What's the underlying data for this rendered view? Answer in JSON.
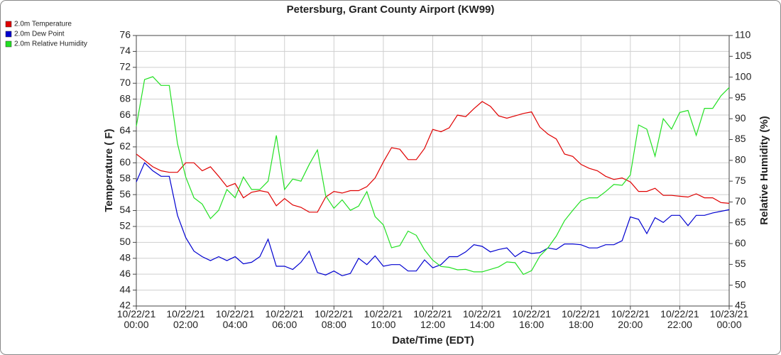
{
  "chart_data": {
    "type": "line",
    "title": "Petersburg, Grant County Airport (KW99)",
    "xlabel": "Date/Time (EDT)",
    "ylabel": "Temperature ( F)",
    "y2label": "Relative Humidity (%)",
    "grid": true,
    "legend": "top-left",
    "x": [
      "2021-10-22T00:00",
      "2021-10-22T00:20",
      "2021-10-22T00:40",
      "2021-10-22T01:00",
      "2021-10-22T01:20",
      "2021-10-22T01:40",
      "2021-10-22T02:00",
      "2021-10-22T02:20",
      "2021-10-22T02:40",
      "2021-10-22T03:00",
      "2021-10-22T03:20",
      "2021-10-22T03:40",
      "2021-10-22T04:00",
      "2021-10-22T04:20",
      "2021-10-22T04:40",
      "2021-10-22T05:00",
      "2021-10-22T05:20",
      "2021-10-22T05:40",
      "2021-10-22T06:00",
      "2021-10-22T06:20",
      "2021-10-22T06:40",
      "2021-10-22T07:00",
      "2021-10-22T07:20",
      "2021-10-22T07:40",
      "2021-10-22T08:00",
      "2021-10-22T08:20",
      "2021-10-22T08:40",
      "2021-10-22T09:00",
      "2021-10-22T09:20",
      "2021-10-22T09:40",
      "2021-10-22T10:00",
      "2021-10-22T10:20",
      "2021-10-22T10:40",
      "2021-10-22T11:00",
      "2021-10-22T11:20",
      "2021-10-22T11:40",
      "2021-10-22T12:00",
      "2021-10-22T12:20",
      "2021-10-22T12:40",
      "2021-10-22T13:00",
      "2021-10-22T13:20",
      "2021-10-22T13:40",
      "2021-10-22T14:00",
      "2021-10-22T14:20",
      "2021-10-22T14:40",
      "2021-10-22T15:00",
      "2021-10-22T15:20",
      "2021-10-22T15:40",
      "2021-10-22T16:00",
      "2021-10-22T16:20",
      "2021-10-22T16:40",
      "2021-10-22T17:00",
      "2021-10-22T17:20",
      "2021-10-22T17:40",
      "2021-10-22T18:00",
      "2021-10-22T18:20",
      "2021-10-22T18:40",
      "2021-10-22T19:00",
      "2021-10-22T19:20",
      "2021-10-22T19:40",
      "2021-10-22T20:00",
      "2021-10-22T20:20",
      "2021-10-22T20:40",
      "2021-10-22T21:00",
      "2021-10-22T21:20",
      "2021-10-22T21:40",
      "2021-10-22T22:00",
      "2021-10-22T22:20",
      "2021-10-22T22:40",
      "2021-10-22T23:00",
      "2021-10-22T23:20",
      "2021-10-22T23:40",
      "2021-10-23T00:00"
    ],
    "xlim": [
      "2021-10-22T00:00",
      "2021-10-23T00:00"
    ],
    "xticks": [
      {
        "value": "2021-10-22T00:00",
        "label": [
          "10/22/21",
          "00:00"
        ]
      },
      {
        "value": "2021-10-22T02:00",
        "label": [
          "10/22/21",
          "02:00"
        ]
      },
      {
        "value": "2021-10-22T04:00",
        "label": [
          "10/22/21",
          "04:00"
        ]
      },
      {
        "value": "2021-10-22T06:00",
        "label": [
          "10/22/21",
          "06:00"
        ]
      },
      {
        "value": "2021-10-22T08:00",
        "label": [
          "10/22/21",
          "08:00"
        ]
      },
      {
        "value": "2021-10-22T10:00",
        "label": [
          "10/22/21",
          "10:00"
        ]
      },
      {
        "value": "2021-10-22T12:00",
        "label": [
          "10/22/21",
          "12:00"
        ]
      },
      {
        "value": "2021-10-22T14:00",
        "label": [
          "10/22/21",
          "14:00"
        ]
      },
      {
        "value": "2021-10-22T16:00",
        "label": [
          "10/22/21",
          "16:00"
        ]
      },
      {
        "value": "2021-10-22T18:00",
        "label": [
          "10/22/21",
          "18:00"
        ]
      },
      {
        "value": "2021-10-22T20:00",
        "label": [
          "10/22/21",
          "20:00"
        ]
      },
      {
        "value": "2021-10-22T22:00",
        "label": [
          "10/22/21",
          "22:00"
        ]
      },
      {
        "value": "2021-10-23T00:00",
        "label": [
          "10/23/21",
          "00:00"
        ]
      }
    ],
    "ylim": [
      42,
      76
    ],
    "yticks": [
      42,
      44,
      46,
      48,
      50,
      52,
      54,
      56,
      58,
      60,
      62,
      64,
      66,
      68,
      70,
      72,
      74,
      76
    ],
    "y2lim": [
      45,
      110
    ],
    "y2ticks": [
      45,
      50,
      55,
      60,
      65,
      70,
      75,
      80,
      85,
      90,
      95,
      100,
      105,
      110
    ],
    "series": [
      {
        "name": "2.0m Temperature",
        "color": "#e00000",
        "values": [
          61.1,
          60.3,
          59.5,
          59.0,
          58.8,
          58.8,
          60.0,
          60.0,
          59.0,
          59.5,
          58.3,
          57.0,
          57.4,
          55.6,
          56.3,
          56.5,
          56.3,
          54.6,
          55.5,
          54.7,
          54.4,
          53.8,
          53.8,
          55.7,
          56.4,
          56.2,
          56.5,
          56.5,
          57.0,
          58.1,
          60.1,
          61.9,
          61.7,
          60.4,
          60.4,
          61.8,
          64.2,
          63.9,
          64.4,
          66.0,
          65.8,
          66.8,
          67.7,
          67.1,
          65.9,
          65.6,
          65.9,
          66.2,
          66.4,
          64.5,
          63.6,
          63.0,
          61.1,
          60.8,
          59.8,
          59.3,
          59.0,
          58.3,
          57.9,
          58.1,
          57.6,
          56.4,
          56.4,
          56.8,
          55.9,
          55.9,
          55.8,
          55.7,
          56.1,
          55.6,
          55.6,
          55.0,
          54.9
        ]
      },
      {
        "name": "2.0m Dew Point",
        "color": "#0000d0",
        "values": [
          57.6,
          60.0,
          59.0,
          58.3,
          58.3,
          53.4,
          50.6,
          48.9,
          48.2,
          47.7,
          48.2,
          47.7,
          48.2,
          47.3,
          47.5,
          48.2,
          50.4,
          47.0,
          47.0,
          46.6,
          47.5,
          48.9,
          46.2,
          45.9,
          46.4,
          45.8,
          46.1,
          48.0,
          47.2,
          48.3,
          47.0,
          47.2,
          47.2,
          46.4,
          46.4,
          47.8,
          46.8,
          47.2,
          48.2,
          48.2,
          48.8,
          49.7,
          49.5,
          48.8,
          49.1,
          49.3,
          48.2,
          48.9,
          48.6,
          48.7,
          49.3,
          49.1,
          49.8,
          49.8,
          49.7,
          49.3,
          49.3,
          49.7,
          49.7,
          50.2,
          53.2,
          52.9,
          51.1,
          53.1,
          52.5,
          53.4,
          53.4,
          52.1,
          53.4,
          53.4,
          53.7,
          53.9,
          54.1
        ]
      },
      {
        "name": "2.0m Relative Humidity",
        "color": "#22e022",
        "axis": "y2",
        "values": [
          88.2,
          99.4,
          100.1,
          98,
          98,
          84,
          76,
          71,
          69.5,
          66,
          68,
          73,
          71,
          76,
          73,
          73,
          75,
          86,
          73,
          75.5,
          75,
          79,
          82.5,
          71.5,
          68.5,
          70.5,
          68,
          69,
          72.5,
          66.5,
          64.5,
          59,
          59.5,
          63,
          62,
          58.5,
          56,
          54.5,
          54.3,
          53.7,
          53.8,
          53.2,
          53.2,
          53.8,
          54.4,
          55.6,
          55.4,
          52.6,
          53.5,
          57,
          59,
          61.8,
          65.5,
          68,
          70.3,
          71,
          71,
          72.5,
          74.2,
          74,
          76.5,
          88.5,
          87.5,
          81,
          90,
          87.5,
          91.5,
          92,
          86,
          92.5,
          92.5,
          95.5,
          97.5
        ]
      }
    ]
  }
}
